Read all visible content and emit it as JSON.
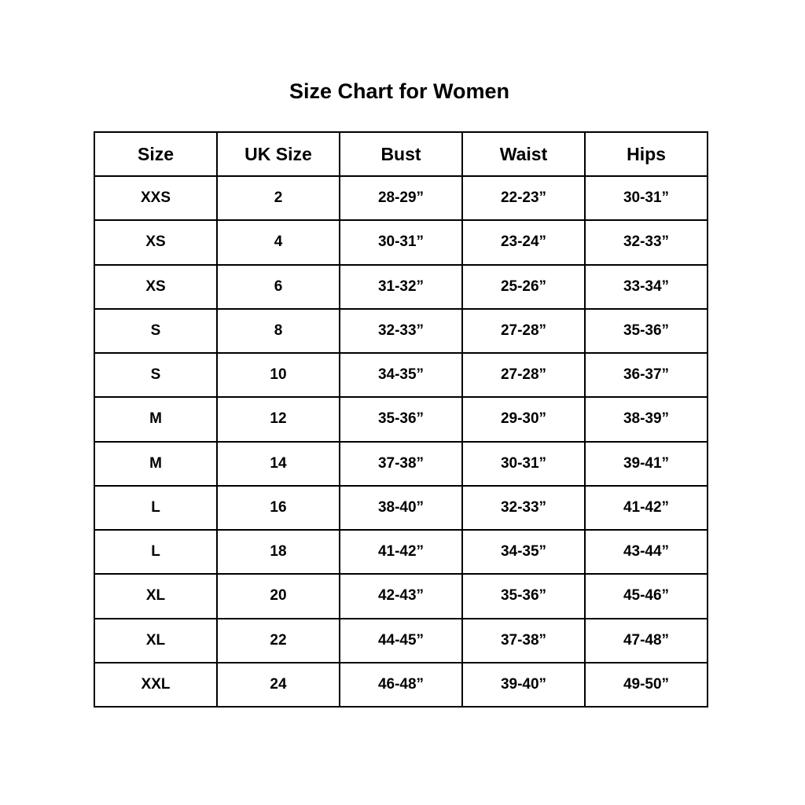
{
  "title": "Size Chart for Women",
  "headers": [
    "Size",
    "UK Size",
    "Bust",
    "Waist",
    "Hips"
  ],
  "rows": [
    [
      "XXS",
      "2",
      "28-29”",
      "22-23”",
      "30-31”"
    ],
    [
      "XS",
      "4",
      "30-31”",
      "23-24”",
      "32-33”"
    ],
    [
      "XS",
      "6",
      "31-32”",
      "25-26”",
      "33-34”"
    ],
    [
      "S",
      "8",
      "32-33”",
      "27-28”",
      "35-36”"
    ],
    [
      "S",
      "10",
      "34-35”",
      "27-28”",
      "36-37”"
    ],
    [
      "M",
      "12",
      "35-36”",
      "29-30”",
      "38-39”"
    ],
    [
      "M",
      "14",
      "37-38”",
      "30-31”",
      "39-41”"
    ],
    [
      "L",
      "16",
      "38-40”",
      "32-33”",
      "41-42”"
    ],
    [
      "L",
      "18",
      "41-42”",
      "34-35”",
      "43-44”"
    ],
    [
      "XL",
      "20",
      "42-43”",
      "35-36”",
      "45-46”"
    ],
    [
      "XL",
      "22",
      "44-45”",
      "37-38”",
      "47-48”"
    ],
    [
      "XXL",
      "24",
      "46-48”",
      "39-40”",
      "49-50”"
    ]
  ]
}
